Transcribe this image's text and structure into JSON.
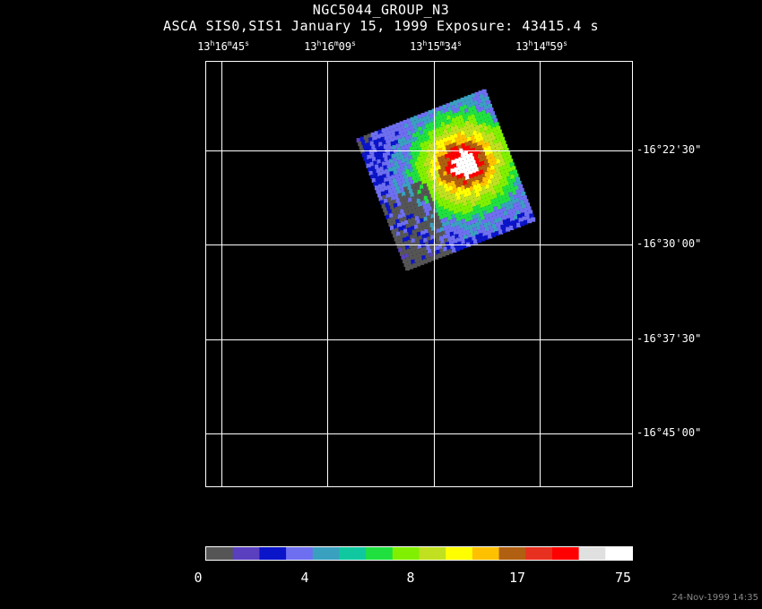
{
  "title": "NGC5044_GROUP_N3",
  "subtitle": "ASCA SIS0,SIS1 January 15, 1999 Exposure: 43415.4 s",
  "ra_ticks": [
    {
      "h": "13",
      "m": "16",
      "s": "45"
    },
    {
      "h": "13",
      "m": "16",
      "s": "09"
    },
    {
      "h": "13",
      "m": "15",
      "s": "34"
    },
    {
      "h": "13",
      "m": "14",
      "s": "59"
    }
  ],
  "dec_ticks": [
    {
      "d": "-16",
      "m": "22",
      "s": "30"
    },
    {
      "d": "-16",
      "m": "30",
      "s": "00"
    },
    {
      "d": "-16",
      "m": "37",
      "s": "30"
    },
    {
      "d": "-16",
      "m": "45",
      "s": "00"
    }
  ],
  "colorbar": {
    "labels": [
      "0",
      "4",
      "8",
      "17",
      "75"
    ],
    "colors": [
      "#555555",
      "#5a3fbf",
      "#0a14c8",
      "#6e6ef0",
      "#3aa0c0",
      "#10c8a0",
      "#20e040",
      "#80f000",
      "#c0e020",
      "#ffff00",
      "#ffc000",
      "#b06010",
      "#e83020",
      "#ff0000",
      "#e0e0e0",
      "#ffffff"
    ]
  },
  "timestamp": "24-Nov-1999 14:35",
  "colors": {
    "background": "#000000",
    "grid": "#ffffff"
  }
}
